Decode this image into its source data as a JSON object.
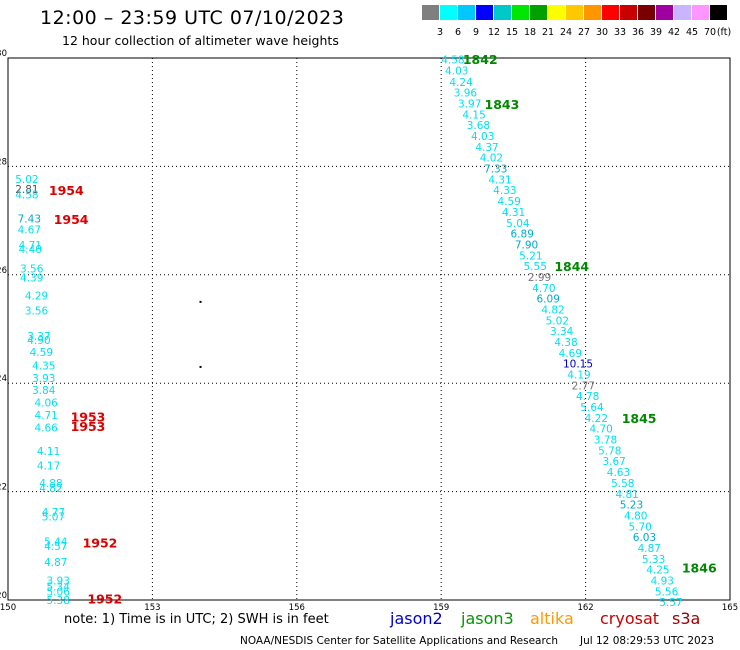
{
  "header": {
    "title": "12:00 – 23:59 UTC 07/10/2023",
    "subtitle": "12 hour collection of altimeter wave heights"
  },
  "colorbar": {
    "unit": "(ft)",
    "labels": [
      "3",
      "6",
      "9",
      "12",
      "15",
      "18",
      "21",
      "24",
      "27",
      "30",
      "33",
      "36",
      "39",
      "42",
      "45",
      "70"
    ],
    "colors": [
      "#7f7f7f",
      "#00ffff",
      "#00c8ff",
      "#0000ff",
      "#00c8c8",
      "#00e600",
      "#00a000",
      "#ffff00",
      "#ffc800",
      "#ff9600",
      "#ff0000",
      "#c80000",
      "#780000",
      "#a000a0",
      "#c8b4ff",
      "#ff96ff",
      "#000000"
    ]
  },
  "footer": {
    "note": "note:  1) Time is in UTC;  2) SWH is in feet",
    "credit": "NOAA/NESDIS Center for Satellite Applications and Research",
    "timestamp": "Jul 12 08:29:53 UTC 2023",
    "satellites": [
      {
        "name": "jason2",
        "color": "#0000cc"
      },
      {
        "name": "jason3",
        "color": "#009900"
      },
      {
        "name": "altika",
        "color": "#ff9900"
      },
      {
        "name": "cryosat",
        "color": "#cc0000"
      },
      {
        "name": "s3a",
        "color": "#990000"
      }
    ]
  },
  "chart_data": {
    "type": "scatter",
    "title": "12:00 – 23:59 UTC 07/10/2023",
    "subtitle": "12 hour collection of altimeter wave heights",
    "xlim": [
      150,
      165
    ],
    "ylim": [
      20,
      30
    ],
    "x_ticks": [
      "150",
      "153",
      "156",
      "159",
      "162",
      "165"
    ],
    "y_ticks": [
      "20",
      "22",
      "24",
      "26",
      "28",
      "30"
    ],
    "grid": true,
    "unit": "ft",
    "tracks": [
      {
        "name": "east-track",
        "color": "#00e0f0",
        "points": [
          {
            "lon": 159.0,
            "lat": 29.97,
            "v": "4.58"
          },
          {
            "lon": 159.08,
            "lat": 29.77,
            "v": "4.03"
          },
          {
            "lon": 159.17,
            "lat": 29.56,
            "v": "4.24"
          },
          {
            "lon": 159.26,
            "lat": 29.36,
            "v": "3.96"
          },
          {
            "lon": 159.35,
            "lat": 29.16,
            "v": "3.97"
          },
          {
            "lon": 159.44,
            "lat": 28.96,
            "v": "4.15"
          },
          {
            "lon": 159.53,
            "lat": 28.76,
            "v": "3.68"
          },
          {
            "lon": 159.62,
            "lat": 28.56,
            "v": "4.03"
          },
          {
            "lon": 159.71,
            "lat": 28.36,
            "v": "4.37"
          },
          {
            "lon": 159.8,
            "lat": 28.16,
            "v": "4.02"
          },
          {
            "lon": 159.89,
            "lat": 27.96,
            "v": "7.33",
            "color": "#00aacc"
          },
          {
            "lon": 159.98,
            "lat": 27.76,
            "v": "4.31"
          },
          {
            "lon": 160.08,
            "lat": 27.56,
            "v": "4.33"
          },
          {
            "lon": 160.17,
            "lat": 27.36,
            "v": "4.59"
          },
          {
            "lon": 160.26,
            "lat": 27.16,
            "v": "4.31"
          },
          {
            "lon": 160.35,
            "lat": 26.96,
            "v": "5.04"
          },
          {
            "lon": 160.44,
            "lat": 26.76,
            "v": "6.89",
            "color": "#00aacc"
          },
          {
            "lon": 160.53,
            "lat": 26.56,
            "v": "7.90",
            "color": "#00aacc"
          },
          {
            "lon": 160.62,
            "lat": 26.36,
            "v": "5.21"
          },
          {
            "lon": 160.71,
            "lat": 26.16,
            "v": "5.55"
          },
          {
            "lon": 160.8,
            "lat": 25.96,
            "v": "2.99",
            "color": "#777777"
          },
          {
            "lon": 160.89,
            "lat": 25.76,
            "v": "4.70"
          },
          {
            "lon": 160.98,
            "lat": 25.56,
            "v": "6.09",
            "color": "#00aacc"
          },
          {
            "lon": 161.08,
            "lat": 25.36,
            "v": "4.82"
          },
          {
            "lon": 161.17,
            "lat": 25.16,
            "v": "5.02"
          },
          {
            "lon": 161.26,
            "lat": 24.96,
            "v": "3.34"
          },
          {
            "lon": 161.35,
            "lat": 24.76,
            "v": "4.38"
          },
          {
            "lon": 161.44,
            "lat": 24.56,
            "v": "4.69"
          },
          {
            "lon": 161.53,
            "lat": 24.36,
            "v": "10.15",
            "color": "#0000cc"
          },
          {
            "lon": 161.62,
            "lat": 24.16,
            "v": "4.19"
          },
          {
            "lon": 161.71,
            "lat": 23.96,
            "v": "2.77",
            "color": "#777777"
          },
          {
            "lon": 161.8,
            "lat": 23.76,
            "v": "4.78"
          },
          {
            "lon": 161.89,
            "lat": 23.56,
            "v": "5.64"
          },
          {
            "lon": 161.98,
            "lat": 23.36,
            "v": "4.22"
          },
          {
            "lon": 162.08,
            "lat": 23.16,
            "v": "4.70"
          },
          {
            "lon": 162.17,
            "lat": 22.96,
            "v": "3.78"
          },
          {
            "lon": 162.26,
            "lat": 22.76,
            "v": "5.78"
          },
          {
            "lon": 162.35,
            "lat": 22.56,
            "v": "3.67"
          },
          {
            "lon": 162.44,
            "lat": 22.36,
            "v": "4.63"
          },
          {
            "lon": 162.53,
            "lat": 22.16,
            "v": "5.58"
          },
          {
            "lon": 162.62,
            "lat": 21.96,
            "v": "4.81"
          },
          {
            "lon": 162.71,
            "lat": 21.76,
            "v": "5.23",
            "color": "#00aacc"
          },
          {
            "lon": 162.8,
            "lat": 21.56,
            "v": "4.80"
          },
          {
            "lon": 162.89,
            "lat": 21.36,
            "v": "5.70"
          },
          {
            "lon": 162.98,
            "lat": 21.16,
            "v": "6.03",
            "color": "#00aacc"
          },
          {
            "lon": 163.08,
            "lat": 20.96,
            "v": "4.87"
          },
          {
            "lon": 163.17,
            "lat": 20.76,
            "v": "5.33"
          },
          {
            "lon": 163.26,
            "lat": 20.56,
            "v": "4.25"
          },
          {
            "lon": 163.35,
            "lat": 20.36,
            "v": "4.93"
          },
          {
            "lon": 163.44,
            "lat": 20.16,
            "v": "5.56"
          },
          {
            "lon": 163.53,
            "lat": 19.96,
            "v": "5.57"
          }
        ],
        "time_labels": [
          {
            "lon": 159.45,
            "lat": 29.98,
            "v": "1842",
            "color": "#008800"
          },
          {
            "lon": 159.9,
            "lat": 29.15,
            "v": "1843",
            "color": "#008800"
          },
          {
            "lon": 161.35,
            "lat": 26.16,
            "v": "1844",
            "color": "#008800"
          },
          {
            "lon": 162.75,
            "lat": 23.36,
            "v": "1845",
            "color": "#008800"
          },
          {
            "lon": 164.0,
            "lat": 20.6,
            "v": "1846",
            "color": "#008800"
          }
        ]
      },
      {
        "name": "west-track",
        "color": "#00e0f0",
        "points": [
          {
            "lon": 150.15,
            "lat": 27.77,
            "v": "5.02"
          },
          {
            "lon": 150.15,
            "lat": 27.58,
            "v": "2.81",
            "color": "#555555"
          },
          {
            "lon": 150.15,
            "lat": 27.48,
            "v": "4.58"
          },
          {
            "lon": 150.2,
            "lat": 27.04,
            "v": "7.43",
            "color": "#00aacc"
          },
          {
            "lon": 150.2,
            "lat": 26.84,
            "v": "4.67"
          },
          {
            "lon": 150.22,
            "lat": 26.55,
            "v": "4.71"
          },
          {
            "lon": 150.22,
            "lat": 26.48,
            "v": "4.40"
          },
          {
            "lon": 150.25,
            "lat": 26.12,
            "v": "3.56"
          },
          {
            "lon": 150.25,
            "lat": 25.95,
            "v": "4.39"
          },
          {
            "lon": 150.35,
            "lat": 25.62,
            "v": "4.29"
          },
          {
            "lon": 150.35,
            "lat": 25.34,
            "v": "3.56"
          },
          {
            "lon": 150.4,
            "lat": 24.87,
            "v": "3.37"
          },
          {
            "lon": 150.4,
            "lat": 24.8,
            "v": "4.90"
          },
          {
            "lon": 150.45,
            "lat": 24.58,
            "v": "4.59"
          },
          {
            "lon": 150.5,
            "lat": 24.33,
            "v": "4.35"
          },
          {
            "lon": 150.5,
            "lat": 24.1,
            "v": "3.93"
          },
          {
            "lon": 150.5,
            "lat": 23.87,
            "v": "3.84"
          },
          {
            "lon": 150.55,
            "lat": 23.64,
            "v": "4.06"
          },
          {
            "lon": 150.55,
            "lat": 23.41,
            "v": "4.71"
          },
          {
            "lon": 150.55,
            "lat": 23.18,
            "v": "4.66"
          },
          {
            "lon": 150.6,
            "lat": 22.75,
            "v": "4.11"
          },
          {
            "lon": 150.6,
            "lat": 22.48,
            "v": "4.17"
          },
          {
            "lon": 150.65,
            "lat": 22.16,
            "v": "4.88"
          },
          {
            "lon": 150.65,
            "lat": 22.07,
            "v": "4.82"
          },
          {
            "lon": 150.7,
            "lat": 21.62,
            "v": "4.77"
          },
          {
            "lon": 150.7,
            "lat": 21.54,
            "v": "5.07"
          },
          {
            "lon": 150.75,
            "lat": 21.08,
            "v": "5.44"
          },
          {
            "lon": 150.75,
            "lat": 21.0,
            "v": "4.57"
          },
          {
            "lon": 150.75,
            "lat": 20.7,
            "v": "4.87"
          },
          {
            "lon": 150.8,
            "lat": 20.36,
            "v": "3.93"
          },
          {
            "lon": 150.8,
            "lat": 20.25,
            "v": "5.34"
          },
          {
            "lon": 150.8,
            "lat": 20.16,
            "v": "5.06"
          },
          {
            "lon": 150.8,
            "lat": 20.0,
            "v": "5.38"
          }
        ],
        "time_labels": [
          {
            "lon": 150.85,
            "lat": 27.56,
            "v": "1954",
            "color": "#dd0000"
          },
          {
            "lon": 150.95,
            "lat": 27.03,
            "v": "1954",
            "color": "#dd0000"
          },
          {
            "lon": 151.3,
            "lat": 23.39,
            "v": "1953",
            "color": "#dd0000"
          },
          {
            "lon": 151.3,
            "lat": 23.21,
            "v": "1953",
            "color": "#dd0000"
          },
          {
            "lon": 151.55,
            "lat": 21.06,
            "v": "1952",
            "color": "#dd0000"
          },
          {
            "lon": 151.65,
            "lat": 20.03,
            "v": "1952",
            "color": "#dd0000"
          }
        ]
      }
    ],
    "markers": [
      {
        "lon": 154.0,
        "lat": 25.5
      },
      {
        "lon": 154.0,
        "lat": 24.3
      }
    ]
  }
}
